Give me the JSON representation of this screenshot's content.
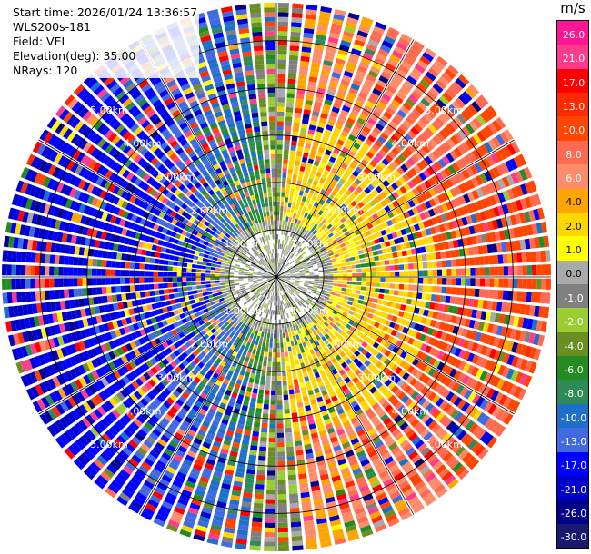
{
  "info": {
    "start_time": "Start time: 2026/01/24 13:36:57",
    "instrument": "WLS200s-181",
    "field": "Field: VEL",
    "elevation": "Elevation(deg): 35.00",
    "nrays": "NRays: 120"
  },
  "colorbar": {
    "unit": "m/s",
    "labels": [
      "26.0",
      "21.0",
      "17.0",
      "13.0",
      "10.0",
      "8.0",
      "6.0",
      "4.0",
      "2.0",
      "1.0",
      "0.0",
      "-1.0",
      "-2.0",
      "-4.0",
      "-6.0",
      "-8.0",
      "-10.0",
      "-13.0",
      "-17.0",
      "-21.0",
      "-26.0",
      "-30.0"
    ],
    "colors": [
      "#ff1493",
      "#ff3c8c",
      "#ff0000",
      "#ff2a00",
      "#ff4500",
      "#ff6a50",
      "#ff8c69",
      "#ffa500",
      "#ffd700",
      "#ffff00",
      "#a9a9a9",
      "#808080",
      "#9acd32",
      "#6b8e23",
      "#228b22",
      "#2e8b57",
      "#1e6fc8",
      "#4169e1",
      "#0000ff",
      "#0000cd",
      "#00008b",
      "#191970"
    ]
  },
  "chart_data": {
    "type": "heatmap",
    "subtype": "polar-ppi",
    "field": "VEL",
    "unit": "m/s",
    "nrays": 120,
    "range_max_km": 5.8,
    "range_rings_km": [
      1.0,
      2.0,
      3.0,
      4.0,
      5.0
    ],
    "ring_labels": [
      "1.00km",
      "2.00km",
      "3.00km",
      "4.00km",
      "5.00km"
    ],
    "spoke_angles_deg": [
      0,
      30,
      60,
      90,
      120,
      150,
      180,
      210,
      240,
      270,
      300,
      330
    ],
    "colormap_levels": [
      -30.0,
      -26.0,
      -21.0,
      -17.0,
      -13.0,
      -10.0,
      -8.0,
      -6.0,
      -4.0,
      -2.0,
      -1.0,
      0.0,
      1.0,
      2.0,
      4.0,
      6.0,
      8.0,
      10.0,
      13.0,
      17.0,
      21.0,
      26.0
    ],
    "pattern": "Near-field (< ~1 km) mixed 0 to -2 m/s; east half positive ~2-6 m/s (yellow band 2-3 km east, orange/red 4-5.8 km east); west half negative ~-8 to -17 m/s at outer ranges; outer ranges noisy with mixed values."
  }
}
